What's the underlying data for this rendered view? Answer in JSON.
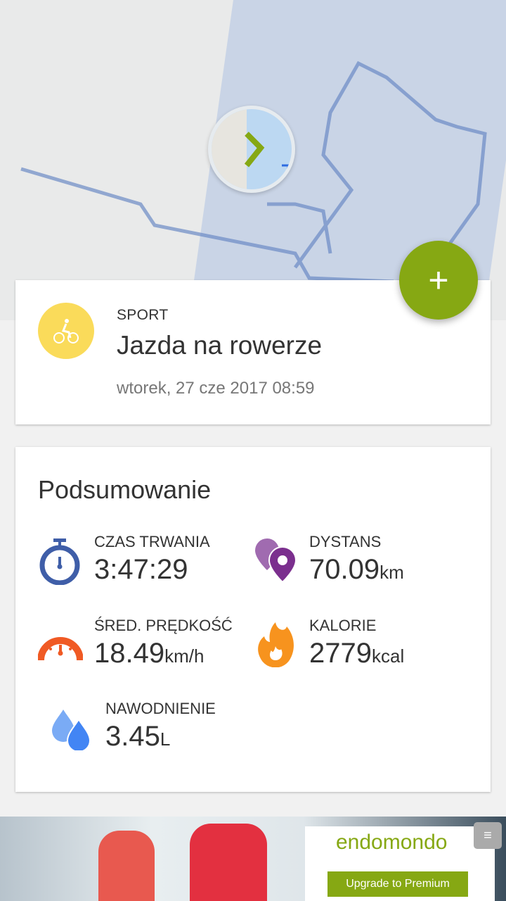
{
  "activity": {
    "sport_label": "SPORT",
    "sport_name": "Jazda na rowerze",
    "datetime": "wtorek, 27 cze 2017 08:59"
  },
  "fab": {
    "label": "+"
  },
  "summary": {
    "title": "Podsumowanie",
    "stats": [
      {
        "label": "CZAS TRWANIA",
        "value": "3:47:29",
        "unit": "",
        "icon": "stopwatch-icon",
        "color": "#3f5ea8"
      },
      {
        "label": "DYSTANS",
        "value": "70.09",
        "unit": "km",
        "icon": "location-pins-icon",
        "color": "#7b2f8e"
      },
      {
        "label": "ŚRED. PRĘDKOŚĆ",
        "value": "18.49",
        "unit": "km/h",
        "icon": "speedometer-icon",
        "color": "#f05a24"
      },
      {
        "label": "KALORIE",
        "value": "2779",
        "unit": "kcal",
        "icon": "flame-icon",
        "color": "#f7931e"
      },
      {
        "label": "NAWODNIENIE",
        "value": "3.45",
        "unit": "L",
        "icon": "water-drops-icon",
        "color": "#4285f4"
      }
    ]
  },
  "ad": {
    "brand": "endomondo",
    "button": "Upgrade to Premium"
  },
  "colors": {
    "accent": "#86a813",
    "sport": "#fadb5a"
  }
}
